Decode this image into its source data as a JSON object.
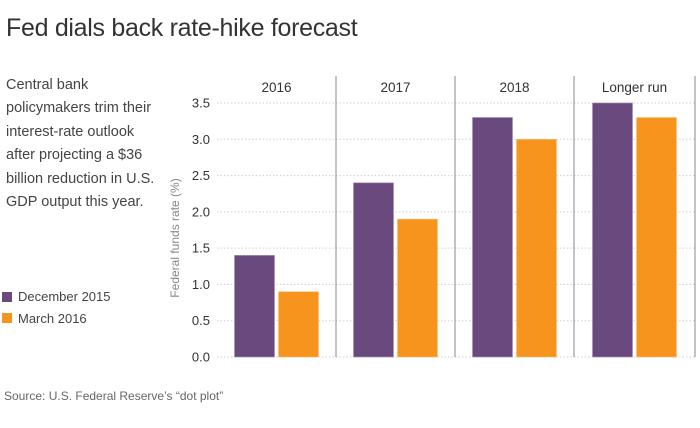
{
  "header": {
    "title": "Fed dials back rate-hike forecast"
  },
  "description": "Central bank policymakers trim their interest-rate outlook after projecting a $36 billion reduction in U.S. GDP output this year.",
  "legend": [
    {
      "label": "December 2015",
      "color": "#6a4a7e"
    },
    {
      "label": "March 2016",
      "color": "#f7941e"
    }
  ],
  "source": "Source: U.S. Federal Reserve’s “dot plot”",
  "chart_data": {
    "type": "bar",
    "title": "Fed dials back rate-hike forecast",
    "xlabel": "",
    "ylabel": "Federal funds rate (%)",
    "ylim": [
      0,
      3.5
    ],
    "yticks": [
      0.0,
      0.5,
      1.0,
      1.5,
      2.0,
      2.5,
      3.0,
      3.5
    ],
    "ytick_labels": [
      "0.0",
      "0.5",
      "1.0",
      "1.5",
      "2.0",
      "2.5",
      "3.0",
      "3.5"
    ],
    "grid": true,
    "legend_position": "left",
    "categories": [
      "2016",
      "2017",
      "2018",
      "Longer run"
    ],
    "series": [
      {
        "name": "December 2015",
        "color": "#6a4a7e",
        "values": [
          1.4,
          2.4,
          3.3,
          3.5
        ]
      },
      {
        "name": "March 2016",
        "color": "#f7941e",
        "values": [
          0.9,
          1.9,
          3.0,
          3.3
        ]
      }
    ]
  }
}
